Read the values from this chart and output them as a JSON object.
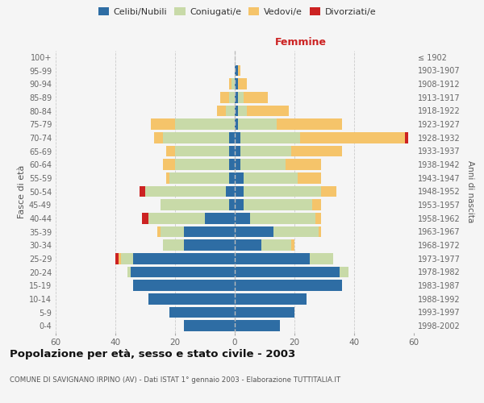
{
  "age_groups": [
    "0-4",
    "5-9",
    "10-14",
    "15-19",
    "20-24",
    "25-29",
    "30-34",
    "35-39",
    "40-44",
    "45-49",
    "50-54",
    "55-59",
    "60-64",
    "65-69",
    "70-74",
    "75-79",
    "80-84",
    "85-89",
    "90-94",
    "95-99",
    "100+"
  ],
  "birth_years": [
    "1998-2002",
    "1993-1997",
    "1988-1992",
    "1983-1987",
    "1978-1982",
    "1973-1977",
    "1968-1972",
    "1963-1967",
    "1958-1962",
    "1953-1957",
    "1948-1952",
    "1943-1947",
    "1938-1942",
    "1933-1937",
    "1928-1932",
    "1923-1927",
    "1918-1922",
    "1913-1917",
    "1908-1912",
    "1903-1907",
    "≤ 1902"
  ],
  "male_celibi": [
    17,
    22,
    29,
    34,
    35,
    34,
    17,
    17,
    10,
    2,
    3,
    2,
    2,
    2,
    2,
    0,
    0,
    0,
    0,
    0,
    0
  ],
  "male_coniugati": [
    0,
    0,
    0,
    0,
    1,
    4,
    7,
    8,
    19,
    23,
    27,
    20,
    18,
    18,
    22,
    20,
    3,
    2,
    1,
    0,
    0
  ],
  "male_vedovi": [
    0,
    0,
    0,
    0,
    0,
    1,
    0,
    1,
    0,
    0,
    0,
    1,
    4,
    3,
    3,
    8,
    3,
    3,
    1,
    0,
    0
  ],
  "male_divorziati": [
    0,
    0,
    0,
    0,
    0,
    1,
    0,
    0,
    2,
    0,
    2,
    0,
    0,
    0,
    0,
    0,
    0,
    0,
    0,
    0,
    0
  ],
  "female_celibi": [
    15,
    20,
    24,
    36,
    35,
    25,
    9,
    13,
    5,
    3,
    3,
    3,
    2,
    2,
    2,
    1,
    1,
    1,
    1,
    1,
    0
  ],
  "female_coniugati": [
    0,
    0,
    0,
    0,
    3,
    8,
    10,
    15,
    22,
    23,
    26,
    18,
    15,
    17,
    20,
    13,
    3,
    2,
    0,
    0,
    0
  ],
  "female_vedovi": [
    0,
    0,
    0,
    0,
    0,
    0,
    1,
    1,
    2,
    3,
    5,
    8,
    12,
    17,
    35,
    22,
    14,
    8,
    3,
    1,
    0
  ],
  "female_divorziati": [
    0,
    0,
    0,
    0,
    0,
    0,
    0,
    0,
    0,
    0,
    0,
    0,
    0,
    0,
    1,
    0,
    0,
    0,
    0,
    0,
    0
  ],
  "colors": {
    "celibi": "#2e6da4",
    "coniugati": "#c8daa8",
    "vedovi": "#f5c46a",
    "divorziati": "#cc2222"
  },
  "title": "Popolazione per età, sesso e stato civile - 2003",
  "subtitle": "COMUNE DI SAVIGNANO IRPINO (AV) - Dati ISTAT 1° gennaio 2003 - Elaborazione TUTTITALIA.IT",
  "xlabel_right": "Femmine",
  "ylabel_left": "Fasce di età",
  "ylabel_right": "Anni di nascita",
  "xlim": 60,
  "background_color": "#f5f5f5",
  "grid_color": "#cccccc"
}
